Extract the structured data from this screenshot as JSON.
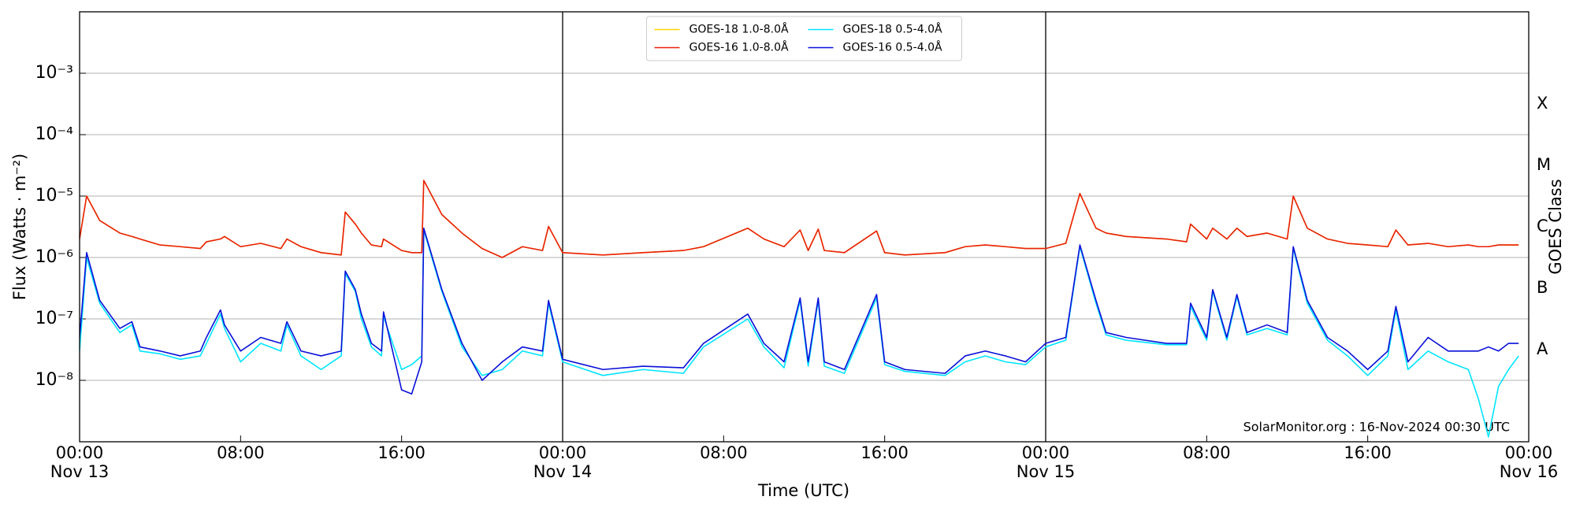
{
  "chart_data": {
    "type": "line",
    "xlabel": "Time (UTC)",
    "ylabel": "Flux (Watts · m⁻²)",
    "y2label": "GOES Class",
    "annotation": "SolarMonitor.org : 16-Nov-2024 00:30 UTC",
    "log_y": true,
    "grid": true,
    "legend": "upper center",
    "legend_columns": 2,
    "day_lines": [
      24,
      48
    ],
    "xlim": [
      0,
      72
    ],
    "xticks": [
      {
        "value": 0,
        "label": [
          "00:00",
          "Nov 13"
        ]
      },
      {
        "value": 8,
        "label": [
          "08:00"
        ]
      },
      {
        "value": 16,
        "label": [
          "16:00"
        ]
      },
      {
        "value": 24,
        "label": [
          "00:00",
          "Nov 14"
        ]
      },
      {
        "value": 32,
        "label": [
          "08:00"
        ]
      },
      {
        "value": 40,
        "label": [
          "16:00"
        ]
      },
      {
        "value": 48,
        "label": [
          "00:00",
          "Nov 15"
        ]
      },
      {
        "value": 56,
        "label": [
          "08:00"
        ]
      },
      {
        "value": 64,
        "label": [
          "16:00"
        ]
      },
      {
        "value": 72,
        "label": [
          "00:00",
          "Nov 16"
        ]
      }
    ],
    "ylim": [
      1e-09,
      0.01
    ],
    "yticks": [
      {
        "value": 1e-08,
        "label": "10⁻⁸"
      },
      {
        "value": 1e-07,
        "label": "10⁻⁷"
      },
      {
        "value": 1e-06,
        "label": "10⁻⁶"
      },
      {
        "value": 1e-05,
        "label": "10⁻⁵"
      },
      {
        "value": 0.0001,
        "label": "10⁻⁴"
      },
      {
        "value": 0.001,
        "label": "10⁻³"
      }
    ],
    "y2lim": [
      1e-09,
      0.01
    ],
    "y2ticks": [
      {
        "value": 0.000316,
        "label": "X"
      },
      {
        "value": 3.16e-05,
        "label": "M"
      },
      {
        "value": 3.16e-06,
        "label": "C"
      },
      {
        "value": 3.16e-07,
        "label": "B"
      },
      {
        "value": 3.16e-08,
        "label": "A"
      }
    ],
    "x": [
      0,
      0.35,
      1,
      2,
      2.6,
      3,
      4,
      5,
      6,
      6.3,
      7,
      7.2,
      8,
      9,
      10,
      10.3,
      11,
      12,
      13,
      13.2,
      13.7,
      14,
      14.5,
      15,
      15.1,
      16,
      16.5,
      17,
      17.1,
      18,
      19,
      20,
      21,
      22,
      23,
      23.3,
      24,
      26,
      28,
      30,
      31,
      33.2,
      34,
      35,
      35.8,
      36.2,
      36.7,
      37,
      38,
      39.6,
      40,
      41,
      43,
      44,
      45,
      46,
      47,
      48,
      49,
      49.7,
      50.5,
      51,
      52,
      54,
      55,
      55.2,
      56,
      56.3,
      57,
      57.5,
      58,
      59,
      60,
      60.3,
      61,
      62,
      63,
      64,
      65,
      65.4,
      66,
      67,
      68,
      69,
      69.5,
      70,
      70.5,
      71,
      71.5
    ],
    "series": [
      {
        "name": "GOES-18 1.0-8.0Å",
        "color": "#ffd700",
        "values": [
          2e-06,
          1e-05,
          4e-06,
          2.5e-06,
          2.2e-06,
          2e-06,
          1.6e-06,
          1.5e-06,
          1.4e-06,
          1.8e-06,
          2e-06,
          2.2e-06,
          1.5e-06,
          1.7e-06,
          1.4e-06,
          2e-06,
          1.5e-06,
          1.2e-06,
          1.1e-06,
          5.5e-06,
          3.5e-06,
          2.5e-06,
          1.6e-06,
          1.5e-06,
          2e-06,
          1.3e-06,
          1.2e-06,
          1.2e-06,
          1.8e-05,
          5e-06,
          2.5e-06,
          1.4e-06,
          1e-06,
          1.5e-06,
          1.3e-06,
          3.2e-06,
          1.2e-06,
          1.1e-06,
          1.2e-06,
          1.3e-06,
          1.5e-06,
          3e-06,
          2e-06,
          1.5e-06,
          2.8e-06,
          1.3e-06,
          2.9e-06,
          1.3e-06,
          1.2e-06,
          2.7e-06,
          1.2e-06,
          1.1e-06,
          1.2e-06,
          1.5e-06,
          1.6e-06,
          1.5e-06,
          1.4e-06,
          1.4e-06,
          1.7e-06,
          1.1e-05,
          3e-06,
          2.5e-06,
          2.2e-06,
          2e-06,
          1.8e-06,
          3.5e-06,
          2e-06,
          3e-06,
          2e-06,
          3e-06,
          2.2e-06,
          2.5e-06,
          2e-06,
          1e-05,
          3e-06,
          2e-06,
          1.7e-06,
          1.6e-06,
          1.5e-06,
          2.8e-06,
          1.6e-06,
          1.7e-06,
          1.5e-06,
          1.6e-06,
          1.5e-06,
          1.5e-06,
          1.6e-06,
          1.6e-06,
          1.6e-06
        ]
      },
      {
        "name": "GOES-16 1.0-8.0Å",
        "color": "#e8200c",
        "values": [
          2e-06,
          1e-05,
          4e-06,
          2.5e-06,
          2.2e-06,
          2e-06,
          1.6e-06,
          1.5e-06,
          1.4e-06,
          1.8e-06,
          2e-06,
          2.2e-06,
          1.5e-06,
          1.7e-06,
          1.4e-06,
          2e-06,
          1.5e-06,
          1.2e-06,
          1.1e-06,
          5.5e-06,
          3.5e-06,
          2.5e-06,
          1.6e-06,
          1.5e-06,
          2e-06,
          1.3e-06,
          1.2e-06,
          1.2e-06,
          1.8e-05,
          5e-06,
          2.5e-06,
          1.4e-06,
          1e-06,
          1.5e-06,
          1.3e-06,
          3.2e-06,
          1.2e-06,
          1.1e-06,
          1.2e-06,
          1.3e-06,
          1.5e-06,
          3e-06,
          2e-06,
          1.5e-06,
          2.8e-06,
          1.3e-06,
          2.9e-06,
          1.3e-06,
          1.2e-06,
          2.7e-06,
          1.2e-06,
          1.1e-06,
          1.2e-06,
          1.5e-06,
          1.6e-06,
          1.5e-06,
          1.4e-06,
          1.4e-06,
          1.7e-06,
          1.1e-05,
          3e-06,
          2.5e-06,
          2.2e-06,
          2e-06,
          1.8e-06,
          3.5e-06,
          2e-06,
          3e-06,
          2e-06,
          3e-06,
          2.2e-06,
          2.5e-06,
          2e-06,
          1e-05,
          3e-06,
          2e-06,
          1.7e-06,
          1.6e-06,
          1.5e-06,
          2.8e-06,
          1.6e-06,
          1.7e-06,
          1.5e-06,
          1.6e-06,
          1.5e-06,
          1.5e-06,
          1.6e-06,
          1.6e-06,
          1.6e-06
        ]
      },
      {
        "name": "GOES-18 0.5-4.0Å",
        "color": "#00e5ff",
        "values": [
          3e-08,
          1e-06,
          1.8e-07,
          6e-08,
          8e-08,
          3e-08,
          2.7e-08,
          2.2e-08,
          2.5e-08,
          4e-08,
          1.2e-07,
          7e-08,
          2e-08,
          4e-08,
          3e-08,
          8e-08,
          2.5e-08,
          1.5e-08,
          2.5e-08,
          5.5e-07,
          2.8e-07,
          1e-07,
          3.5e-08,
          2.5e-08,
          1.1e-07,
          1.5e-08,
          1.8e-08,
          2.5e-08,
          2.8e-06,
          2.8e-07,
          3.5e-08,
          1.2e-08,
          1.5e-08,
          3e-08,
          2.5e-08,
          1.8e-07,
          2e-08,
          1.2e-08,
          1.5e-08,
          1.3e-08,
          3.5e-08,
          1e-07,
          3.5e-08,
          1.6e-08,
          2e-07,
          1.7e-08,
          2e-07,
          1.7e-08,
          1.3e-08,
          2.2e-07,
          1.8e-08,
          1.4e-08,
          1.2e-08,
          2e-08,
          2.5e-08,
          2e-08,
          1.8e-08,
          3.5e-08,
          4.5e-08,
          1.5e-06,
          1.8e-07,
          5.5e-08,
          4.5e-08,
          3.8e-08,
          3.8e-08,
          1.6e-07,
          4.5e-08,
          2.8e-07,
          4.5e-08,
          2.3e-07,
          5.5e-08,
          7e-08,
          5.5e-08,
          1.4e-06,
          1.8e-07,
          4.5e-08,
          2.5e-08,
          1.2e-08,
          2.5e-08,
          1.4e-07,
          1.5e-08,
          3e-08,
          2e-08,
          1.5e-08,
          5e-09,
          1.2e-09,
          8e-09,
          1.5e-08,
          2.5e-08
        ]
      },
      {
        "name": "GOES-16 0.5-4.0Å",
        "color": "#0a10d8",
        "values": [
          5e-08,
          1.2e-06,
          2e-07,
          7e-08,
          9e-08,
          3.5e-08,
          3e-08,
          2.5e-08,
          3e-08,
          5e-08,
          1.4e-07,
          8e-08,
          3e-08,
          5e-08,
          4e-08,
          9e-08,
          3e-08,
          2.5e-08,
          3e-08,
          6e-07,
          3e-07,
          1.2e-07,
          4e-08,
          3e-08,
          1.3e-07,
          7e-09,
          6e-09,
          2e-08,
          3e-06,
          3e-07,
          4e-08,
          1e-08,
          2e-08,
          3.5e-08,
          3e-08,
          2e-07,
          2.2e-08,
          1.5e-08,
          1.7e-08,
          1.6e-08,
          4e-08,
          1.2e-07,
          4e-08,
          2e-08,
          2.2e-07,
          2e-08,
          2.2e-07,
          2e-08,
          1.5e-08,
          2.5e-07,
          2e-08,
          1.5e-08,
          1.3e-08,
          2.5e-08,
          3e-08,
          2.5e-08,
          2e-08,
          4e-08,
          5e-08,
          1.6e-06,
          2e-07,
          6e-08,
          5e-08,
          4e-08,
          4e-08,
          1.8e-07,
          5e-08,
          3e-07,
          5e-08,
          2.5e-07,
          6e-08,
          8e-08,
          6e-08,
          1.5e-06,
          2e-07,
          5e-08,
          3e-08,
          1.5e-08,
          3e-08,
          1.6e-07,
          2e-08,
          5e-08,
          3e-08,
          3e-08,
          3e-08,
          3.5e-08,
          3e-08,
          4e-08,
          4e-08
        ]
      }
    ]
  }
}
